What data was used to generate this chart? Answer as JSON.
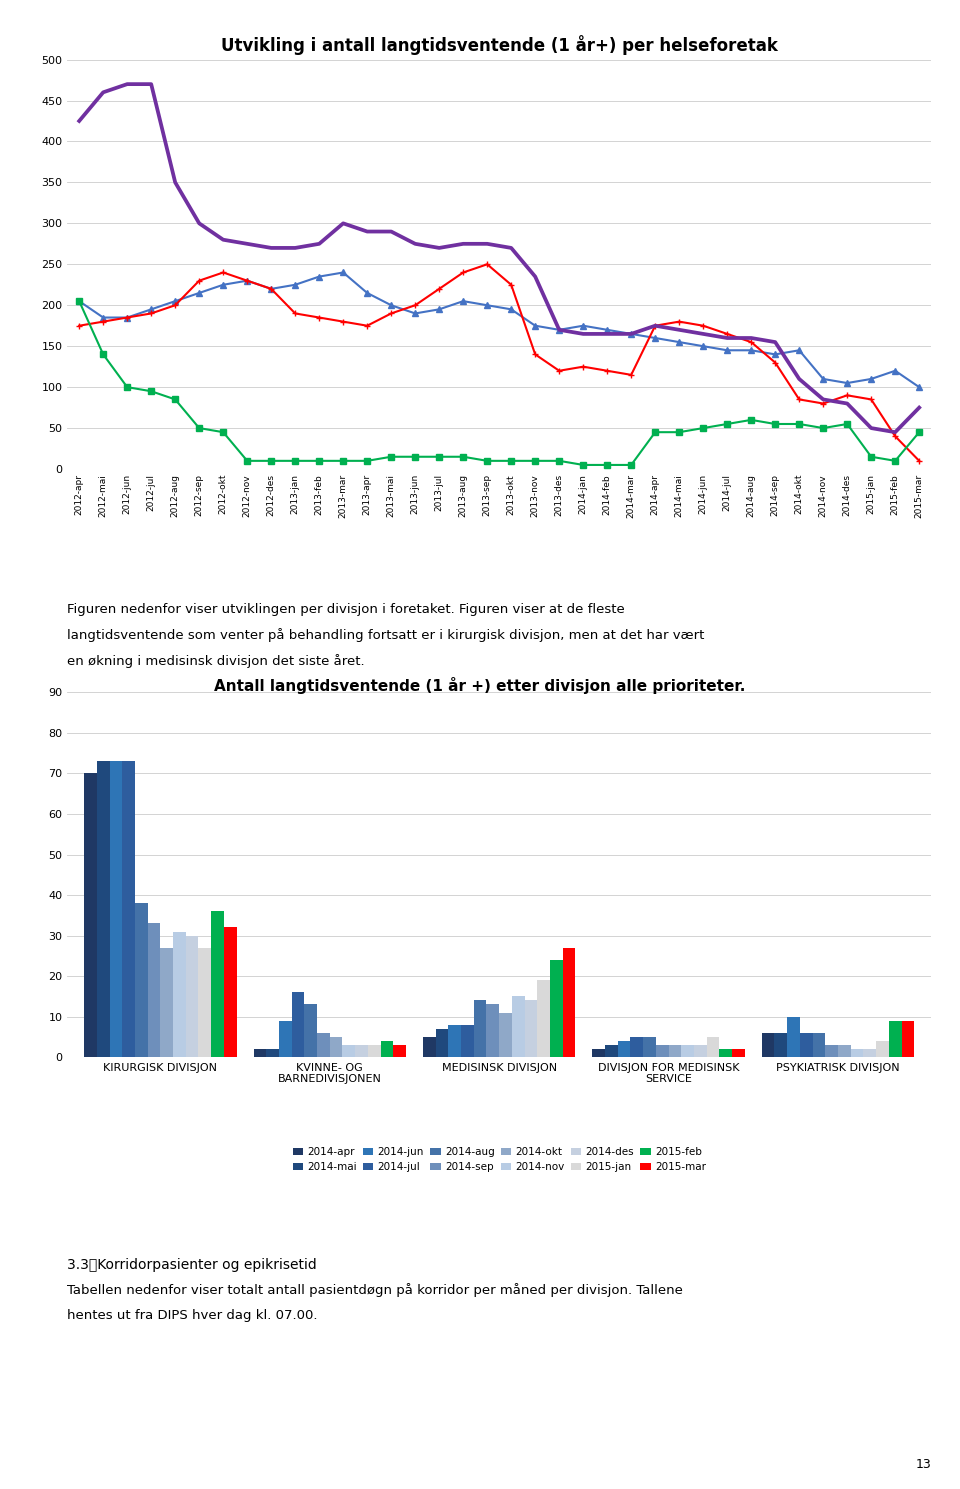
{
  "line_chart": {
    "title": "Utvikling i antall langtidsventende (1 år+) per helseforetak",
    "x_labels": [
      "2012-apr",
      "2012-mai",
      "2012-jun",
      "2012-jul",
      "2012-aug",
      "2012-sep",
      "2012-okt",
      "2012-nov",
      "2012-des",
      "2013-jan",
      "2013-feb",
      "2013-mar",
      "2013-apr",
      "2013-mai",
      "2013-jun",
      "2013-jul",
      "2013-aug",
      "2013-sep",
      "2013-okt",
      "2013-nov",
      "2013-des",
      "2014-jan",
      "2014-feb",
      "2014-mar",
      "2014-apr",
      "2014-mai",
      "2014-jun",
      "2014-jul",
      "2014-aug",
      "2014-sep",
      "2014-okt",
      "2014-nov",
      "2014-des",
      "2015-jan",
      "2015-feb",
      "2015-mar"
    ],
    "series": {
      "HELSE BERGEN HF": {
        "color": "#4472C4",
        "marker": "^",
        "values": [
          205,
          185,
          185,
          195,
          205,
          215,
          225,
          230,
          220,
          225,
          235,
          240,
          215,
          200,
          190,
          195,
          205,
          200,
          195,
          175,
          170,
          175,
          170,
          165,
          160,
          155,
          150,
          145,
          145,
          140,
          145,
          110,
          105,
          110,
          120,
          100
        ]
      },
      "HELSE FONNA HF": {
        "color": "#FF0000",
        "marker": "+",
        "values": [
          175,
          180,
          185,
          190,
          200,
          230,
          240,
          230,
          220,
          190,
          185,
          180,
          175,
          190,
          200,
          220,
          240,
          250,
          225,
          140,
          120,
          125,
          120,
          115,
          175,
          180,
          175,
          165,
          155,
          130,
          85,
          80,
          90,
          85,
          40,
          10
        ]
      },
      "HELSE FØRDE HF": {
        "color": "#00B050",
        "marker": "s",
        "values": [
          205,
          140,
          100,
          95,
          85,
          50,
          45,
          10,
          10,
          10,
          10,
          10,
          10,
          15,
          15,
          15,
          15,
          10,
          10,
          10,
          10,
          5,
          5,
          5,
          45,
          45,
          50,
          55,
          60,
          55,
          55,
          50,
          55,
          15,
          10,
          45
        ]
      },
      "HELSE STAVANGER HF": {
        "color": "#7030A0",
        "marker": null,
        "values": [
          425,
          460,
          470,
          470,
          350,
          300,
          280,
          275,
          270,
          270,
          275,
          300,
          290,
          290,
          275,
          270,
          275,
          275,
          270,
          235,
          170,
          165,
          165,
          165,
          175,
          170,
          165,
          160,
          160,
          155,
          110,
          85,
          80,
          50,
          45,
          75
        ]
      }
    },
    "ylim": [
      0,
      500
    ],
    "yticks": [
      0,
      50,
      100,
      150,
      200,
      250,
      300,
      350,
      400,
      450,
      500
    ]
  },
  "bar_chart": {
    "title": "Antall langtidsventende (1 år +) etter divisjon alle prioriteter.",
    "divisions": [
      "KIRURGISK DIVISJON",
      "KVINNE- OG\nBARNEDIVISJONEN",
      "MEDISINSK DIVISJON",
      "DIVISJON FOR MEDISINSK\nSERVICE",
      "PSYKIATRISK DIVISJON"
    ],
    "months": [
      "2014-apr",
      "2014-mai",
      "2014-jun",
      "2014-jul",
      "2014-aug",
      "2014-sep",
      "2014-okt",
      "2014-nov",
      "2014-des",
      "2015-jan",
      "2015-feb",
      "2015-mar"
    ],
    "colors": [
      "#1F3864",
      "#1F497D",
      "#2E75B6",
      "#2E5D9E",
      "#4472A8",
      "#6E8FBB",
      "#8FA8C8",
      "#B8CCE4",
      "#C5D0E0",
      "#D9D9D9",
      "#00B050",
      "#FF0000"
    ],
    "data": {
      "KIRURGISK DIVISJON": [
        70,
        73,
        73,
        73,
        38,
        33,
        27,
        31,
        30,
        27,
        36,
        32
      ],
      "KVINNE- OG\nBARNEDIVISJONEN": [
        2,
        2,
        9,
        16,
        13,
        6,
        5,
        3,
        3,
        3,
        4,
        3
      ],
      "MEDISINSK DIVISJON": [
        5,
        7,
        8,
        8,
        14,
        13,
        11,
        15,
        14,
        19,
        24,
        27
      ],
      "DIVISJON FOR MEDISINSK\nSERVICE": [
        2,
        3,
        4,
        5,
        5,
        3,
        3,
        3,
        3,
        5,
        2,
        2
      ],
      "PSYKIATRISK DIVISJON": [
        6,
        6,
        10,
        6,
        6,
        3,
        3,
        2,
        2,
        4,
        9,
        9
      ]
    },
    "ylim": [
      0,
      90
    ],
    "yticks": [
      0,
      10,
      20,
      30,
      40,
      50,
      60,
      70,
      80,
      90
    ]
  },
  "paragraph_text_1": "Figuren nedenfor viser utviklingen per divisjon i foretaket. Figuren viser at de fleste",
  "paragraph_text_2": "langtidsventende som venter på behandling fortsatt er i kirurgisk divisjon, men at det har vært",
  "paragraph_text_3": "en økning i medisinsk divisjon det siste året.",
  "footer_bold": "3.3\tKorridorpasienter og epikrisetid",
  "footer_line2": "Tabellen nedenfor viser totalt antall pasientdøgn på korridor per måned per divisjon. Tallene",
  "footer_line3": "hentes ut fra DIPS hver dag kl. 07.00.",
  "page_number": "13",
  "bg_color": "#FFFFFF"
}
